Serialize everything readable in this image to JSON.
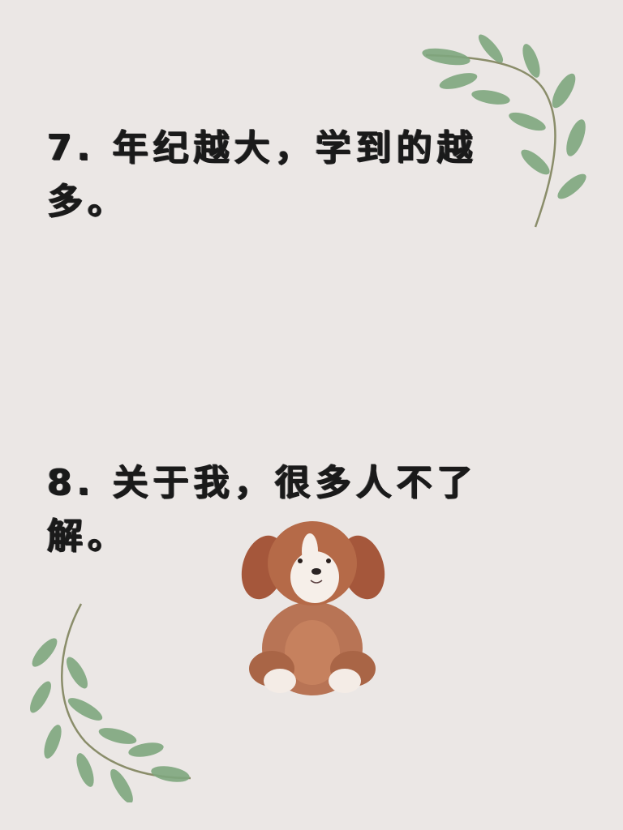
{
  "items": [
    {
      "text": "7. 年纪越大，学到的越多。"
    },
    {
      "text": "8. 关于我，很多人不了解。"
    }
  ],
  "decor": {
    "leaf_color": "#7fa77f",
    "stem_color": "#8a8d6a",
    "dog_color": "#b5694a",
    "icons": [
      "leaf-branch-icon",
      "plush-puppy-icon"
    ]
  }
}
